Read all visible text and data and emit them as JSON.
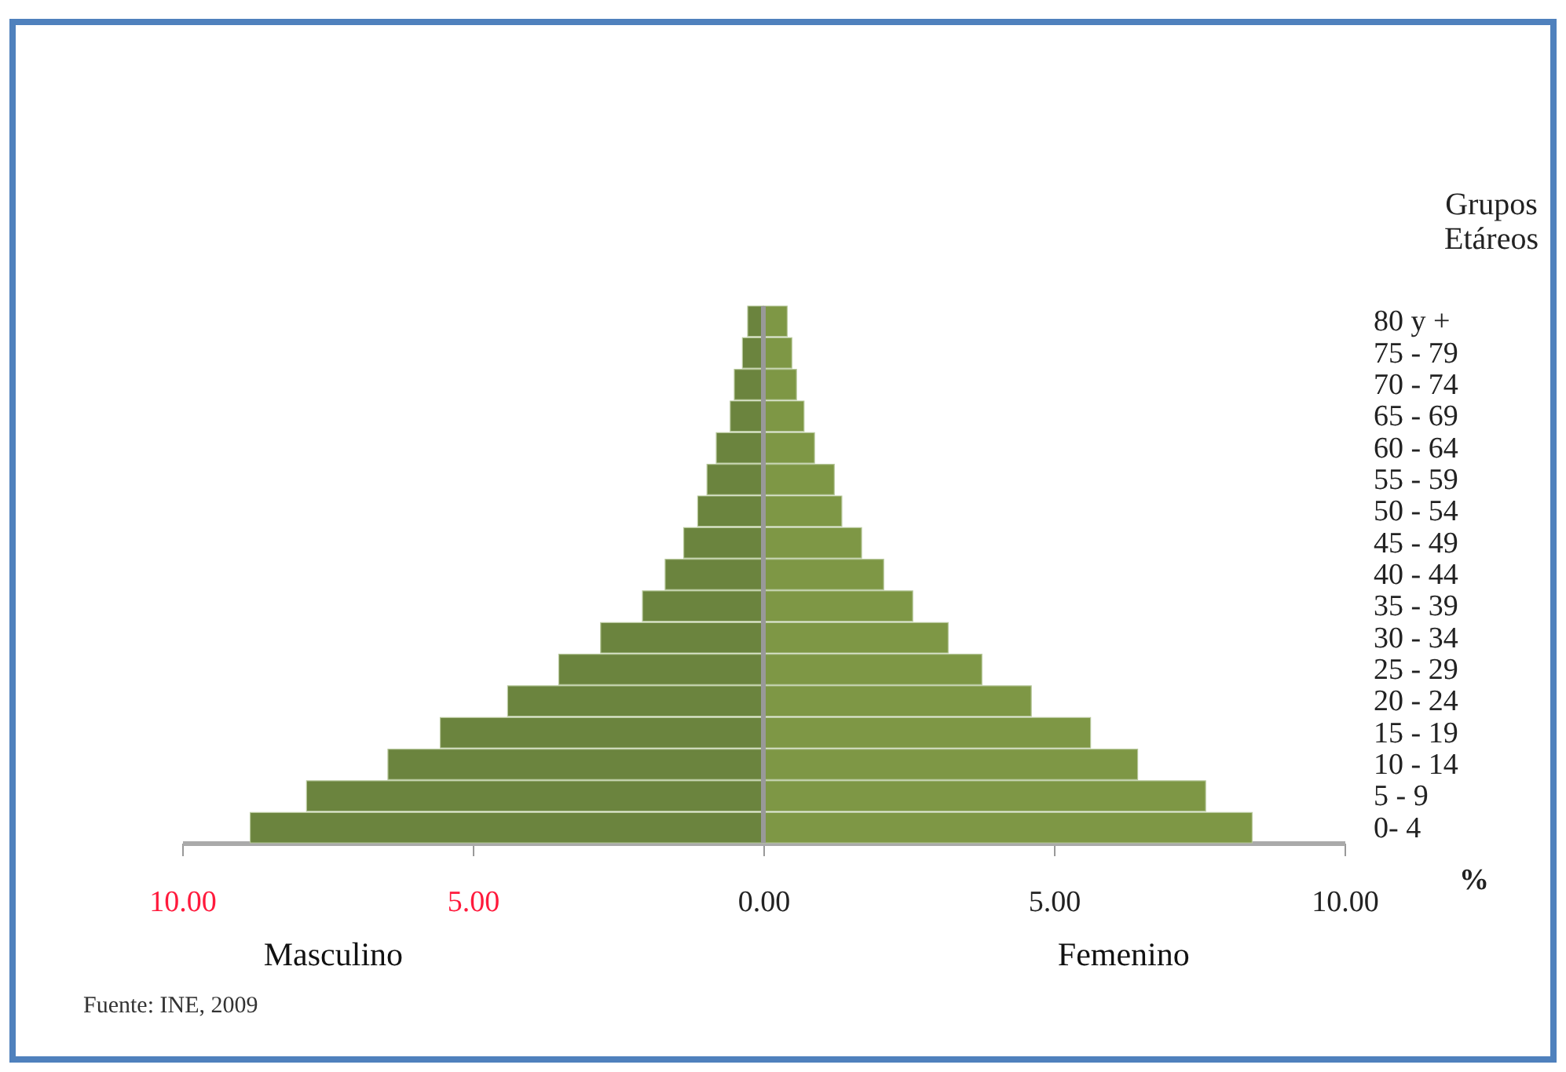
{
  "chart_data": {
    "type": "bar",
    "orientation": "horizontal",
    "categories": [
      "80 y +",
      "75 - 79",
      "70 - 74",
      "65 - 69",
      "60 - 64",
      "55 - 59",
      "50 - 54",
      "45 - 49",
      "40 - 44",
      "35 - 39",
      "30 - 34",
      "25 - 29",
      "20 - 24",
      "15 - 19",
      "10 - 14",
      "5 - 9",
      "0- 4"
    ],
    "series": [
      {
        "name": "Masculino",
        "color": "#6b843e",
        "values": [
          -0.27,
          -0.36,
          -0.5,
          -0.57,
          -0.81,
          -0.97,
          -1.13,
          -1.37,
          -1.69,
          -2.08,
          -2.8,
          -3.52,
          -4.4,
          -5.56,
          -6.46,
          -7.86,
          -8.83
        ]
      },
      {
        "name": "Femenino",
        "color": "#7e9745",
        "values": [
          0.41,
          0.49,
          0.57,
          0.7,
          0.88,
          1.22,
          1.35,
          1.69,
          2.07,
          2.57,
          3.18,
          3.76,
          4.61,
          5.63,
          6.44,
          7.61,
          8.41
        ]
      }
    ],
    "xlim": [
      -10,
      10
    ],
    "xticks": [
      {
        "value": -10,
        "label": "10.00"
      },
      {
        "value": -5,
        "label": "5.00"
      },
      {
        "value": 0,
        "label": "0.00"
      },
      {
        "value": 5,
        "label": "5.00"
      },
      {
        "value": 10,
        "label": "10.00"
      }
    ],
    "xlabel": "%",
    "ylabel": "Grupos Etáreos",
    "ref_lines": [
      {
        "axis": "x",
        "value": 0
      }
    ],
    "annotations": [
      "Fuente: INE, 2009"
    ],
    "stacked": true
  }
}
